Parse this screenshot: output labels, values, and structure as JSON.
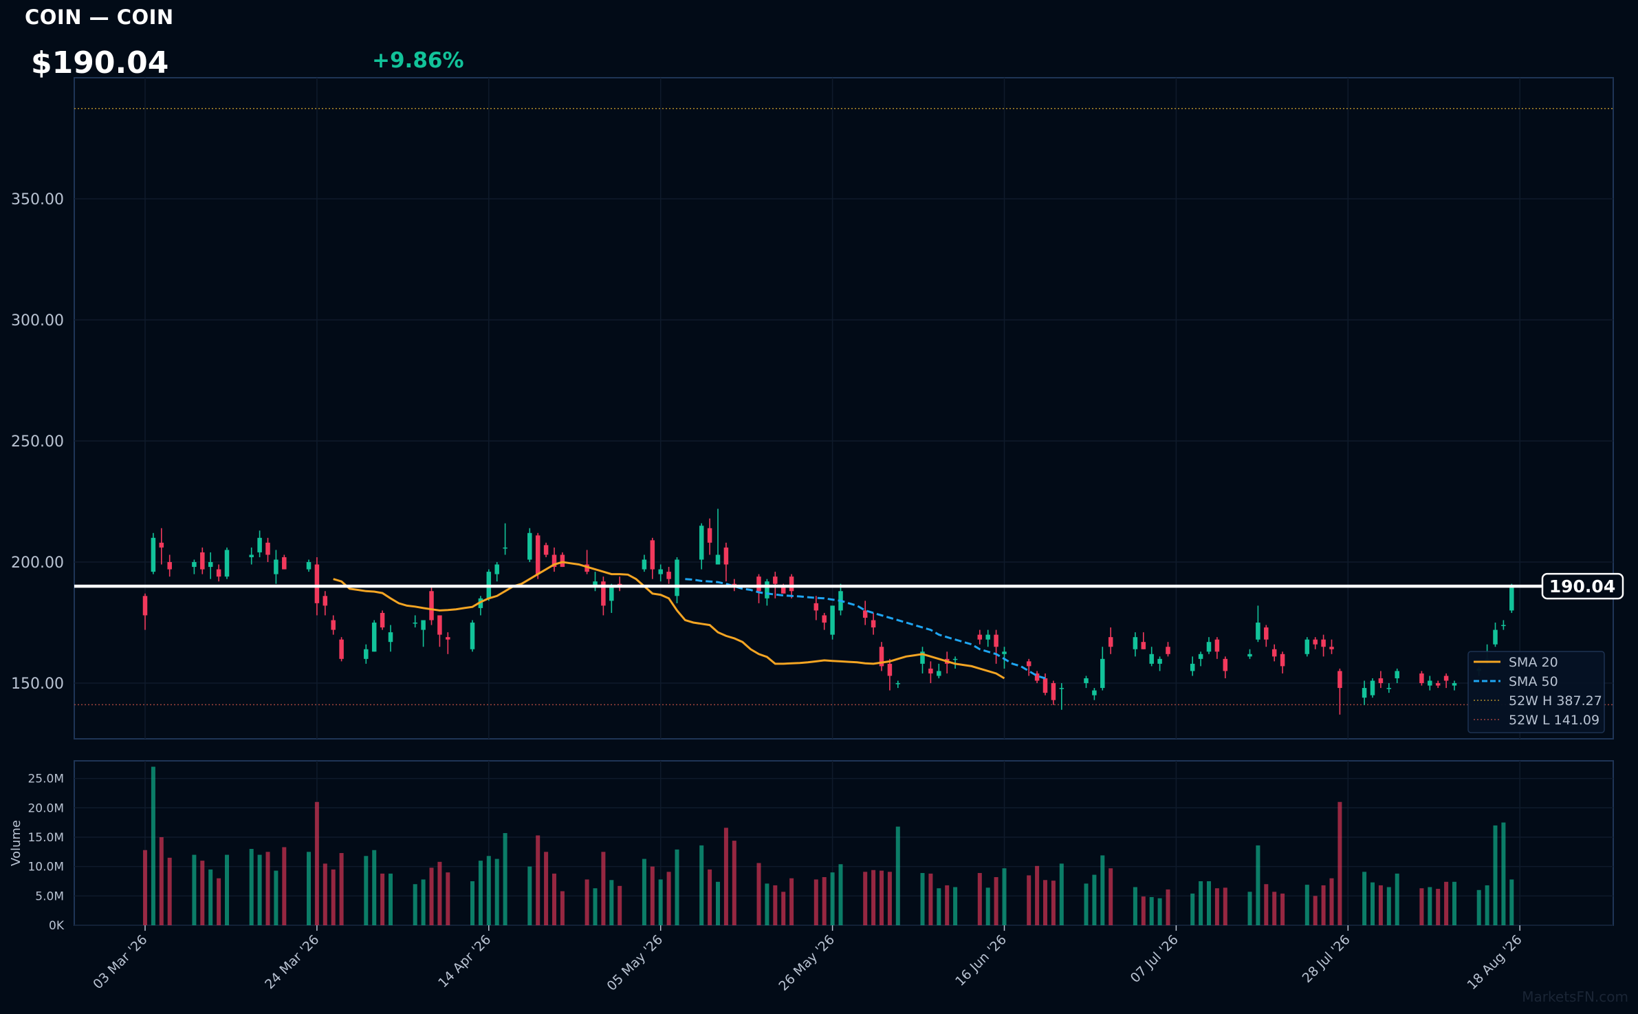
{
  "header": {
    "title": "COIN — COIN",
    "price": "$190.04",
    "change": "+9.86%"
  },
  "colors": {
    "background": "#020b17",
    "panel_border": "#1f3556",
    "grid": "#0f1b2b",
    "up": "#12c39a",
    "down": "#f2395c",
    "sma20": "#f4a523",
    "sma50": "#1ea5f2",
    "high_line": "#b08a2a",
    "low_line": "#a0433d",
    "axis_text": "#b9c3d2",
    "change_text": "#12c39a"
  },
  "chart_data": {
    "type": "candlestick",
    "x_ticks": [
      "03 Mar '26",
      "24 Mar '26",
      "14 Apr '26",
      "05 May '26",
      "26 May '26",
      "16 Jun '26",
      "07 Jul '26",
      "28 Jul '26",
      "18 Aug '26"
    ],
    "price_axis": {
      "ticks": [
        "150.00",
        "200.00",
        "250.00",
        "300.00",
        "350.00"
      ],
      "range": [
        127,
        400
      ]
    },
    "volume_axis": {
      "label": "Volume",
      "ticks": [
        "0K",
        "5.0M",
        "10.0M",
        "15.0M",
        "20.0M",
        "25.0M"
      ],
      "range": [
        0,
        28
      ]
    },
    "last_price_label": "190.04",
    "last_price": 190.04,
    "levels": {
      "high_52w": 387.27,
      "low_52w": 141.09
    },
    "legend": {
      "placement": "bottom-right",
      "items": [
        "SMA 20",
        "SMA 50",
        "52W H 387.27",
        "52W L 141.09"
      ]
    },
    "candles": [
      [
        0,
        186,
        187,
        172,
        178,
        12.8
      ],
      [
        1,
        196,
        212,
        195,
        210,
        27
      ],
      [
        2,
        208,
        214,
        199,
        206,
        15
      ],
      [
        3,
        200,
        203,
        194,
        197,
        11.5
      ],
      [
        6,
        198,
        201,
        195,
        200,
        12
      ],
      [
        7,
        204,
        206,
        195,
        197,
        11
      ],
      [
        8,
        198,
        204,
        193,
        200,
        9.5
      ],
      [
        9,
        197,
        199,
        192,
        194,
        8
      ],
      [
        10,
        194,
        206,
        193,
        205,
        12
      ],
      [
        13,
        202,
        206,
        199,
        203,
        13
      ],
      [
        14,
        204,
        213,
        202,
        210,
        12
      ],
      [
        15,
        208,
        210,
        200,
        203,
        12.5
      ],
      [
        16,
        195,
        205,
        191,
        201,
        9.3
      ],
      [
        17,
        202,
        203,
        197,
        197,
        13.3
      ],
      [
        20,
        197,
        201,
        196,
        200,
        12.5
      ],
      [
        21,
        199,
        202,
        178,
        183,
        21
      ],
      [
        22,
        186,
        188,
        178,
        182,
        10.5
      ],
      [
        23,
        176,
        178,
        170,
        172,
        9.5
      ],
      [
        24,
        168,
        169,
        159,
        160,
        12.3
      ],
      [
        27,
        160,
        166,
        158,
        164,
        11.8
      ],
      [
        28,
        163,
        176,
        163,
        175,
        12.8
      ],
      [
        29,
        179,
        180,
        172,
        173,
        8.8
      ],
      [
        30,
        167,
        174,
        163,
        171,
        8.8
      ],
      [
        33,
        175,
        178,
        173,
        175,
        7
      ],
      [
        34,
        172,
        176,
        165,
        176,
        7.8
      ],
      [
        35,
        188,
        190,
        174,
        176,
        9.8
      ],
      [
        36,
        178,
        178,
        165,
        170,
        10.8
      ],
      [
        37,
        169,
        171,
        162,
        168,
        9
      ],
      [
        40,
        164,
        176,
        163,
        175,
        7.5
      ],
      [
        41,
        181,
        186,
        178,
        185,
        11
      ],
      [
        42,
        185,
        197,
        184,
        196,
        11.8
      ],
      [
        43,
        195,
        200,
        192,
        199,
        11.3
      ],
      [
        44,
        206,
        216,
        203,
        206,
        15.7
      ],
      [
        47,
        201,
        214,
        200,
        212,
        10
      ],
      [
        48,
        211,
        212,
        193,
        195,
        15.3
      ],
      [
        49,
        207,
        208,
        202,
        203,
        12.5
      ],
      [
        50,
        203,
        206,
        196,
        198,
        8.8
      ],
      [
        51,
        203,
        204,
        198,
        198,
        5.8
      ],
      [
        54,
        199,
        205,
        195,
        196,
        7.8
      ],
      [
        55,
        190,
        196,
        188,
        192,
        6.3
      ],
      [
        56,
        192,
        194,
        178,
        182,
        12.5
      ],
      [
        57,
        184,
        191,
        179,
        190,
        7.7
      ],
      [
        58,
        191,
        194,
        188,
        190,
        6.7
      ],
      [
        61,
        197,
        203,
        196,
        201,
        11.3
      ],
      [
        62,
        209,
        210,
        193,
        197,
        10
      ],
      [
        63,
        195,
        199,
        192,
        197,
        7.8
      ],
      [
        64,
        196,
        198,
        191,
        193,
        9.1
      ],
      [
        65,
        186,
        202,
        183,
        201,
        12.9
      ],
      [
        68,
        201,
        216,
        197,
        215,
        13.6
      ],
      [
        69,
        214,
        218,
        203,
        208,
        9.5
      ],
      [
        70,
        199,
        222,
        199,
        203,
        7.4
      ],
      [
        71,
        206,
        208,
        192,
        199,
        16.6
      ],
      [
        72,
        191,
        193,
        188,
        190,
        14.4
      ],
      [
        75,
        194,
        195,
        183,
        188,
        10.6
      ],
      [
        76,
        185,
        193,
        182,
        192,
        7.1
      ],
      [
        77,
        194,
        196,
        185,
        191,
        6.8
      ],
      [
        78,
        190,
        191,
        187,
        187,
        5.7
      ],
      [
        79,
        194,
        195,
        185,
        188,
        8
      ],
      [
        82,
        183,
        186,
        176,
        180,
        7.8
      ],
      [
        83,
        178,
        179,
        172,
        175,
        8.2
      ],
      [
        84,
        170,
        182,
        168,
        182,
        9
      ],
      [
        85,
        180,
        191,
        178,
        188,
        10.4
      ],
      [
        88,
        180,
        184,
        174,
        177,
        9.1
      ],
      [
        89,
        176,
        179,
        170,
        173,
        9.4
      ],
      [
        90,
        165,
        167,
        155,
        157,
        9.3
      ],
      [
        91,
        158,
        160,
        147,
        153,
        9.1
      ],
      [
        92,
        150,
        151,
        148,
        150,
        16.8
      ],
      [
        95,
        158,
        165,
        154,
        163,
        8.9
      ],
      [
        96,
        156,
        159,
        150,
        154,
        8.8
      ],
      [
        97,
        153,
        158,
        152,
        155,
        6.3
      ],
      [
        98,
        160,
        163,
        154,
        158,
        6.8
      ],
      [
        99,
        160,
        161,
        156,
        160,
        6.5
      ],
      [
        102,
        170,
        172,
        166,
        168,
        8.9
      ],
      [
        103,
        168,
        172,
        165,
        170,
        6.4
      ],
      [
        104,
        170,
        172,
        158,
        165,
        8.2
      ],
      [
        105,
        162,
        165,
        156,
        163,
        9.7
      ],
      [
        108,
        159,
        160,
        153,
        157,
        8.5
      ],
      [
        109,
        154,
        155,
        150,
        151,
        10.1
      ],
      [
        110,
        152,
        154,
        145,
        146,
        7.7
      ],
      [
        111,
        150,
        151,
        141,
        143,
        7.6
      ],
      [
        112,
        148,
        150,
        139,
        148,
        10.5
      ],
      [
        115,
        150,
        153,
        148,
        152,
        7.1
      ],
      [
        116,
        145,
        148,
        143,
        147,
        8.6
      ],
      [
        117,
        148,
        165,
        147,
        160,
        11.9
      ],
      [
        118,
        169,
        173,
        162,
        165,
        9.7
      ],
      [
        121,
        164,
        171,
        161,
        169,
        6.5
      ],
      [
        122,
        167,
        171,
        164,
        164,
        4.9
      ],
      [
        123,
        158,
        165,
        157,
        162,
        4.8
      ],
      [
        124,
        158,
        161,
        155,
        160,
        4.6
      ],
      [
        125,
        165,
        167,
        161,
        162,
        6.1
      ],
      [
        128,
        155,
        161,
        153,
        158,
        5.4
      ],
      [
        129,
        160,
        163,
        157,
        162,
        7.5
      ],
      [
        130,
        163,
        169,
        162,
        167,
        7.5
      ],
      [
        131,
        168,
        169,
        160,
        163,
        6.3
      ],
      [
        132,
        160,
        161,
        152,
        155,
        6.4
      ],
      [
        135,
        161,
        164,
        160,
        162,
        5.7
      ],
      [
        136,
        168,
        182,
        167,
        175,
        13.6
      ],
      [
        137,
        173,
        174,
        165,
        168,
        7
      ],
      [
        138,
        164,
        166,
        159,
        161,
        5.7
      ],
      [
        139,
        162,
        163,
        154,
        157,
        5.4
      ],
      [
        142,
        162,
        169,
        161,
        168,
        6.9
      ],
      [
        143,
        168,
        169,
        164,
        166,
        5
      ],
      [
        144,
        168,
        170,
        161,
        165,
        6.8
      ],
      [
        145,
        165,
        168,
        162,
        164,
        8
      ],
      [
        146,
        155,
        156,
        137,
        148,
        21
      ],
      [
        149,
        144,
        151,
        141,
        148,
        9.1
      ],
      [
        150,
        145,
        152,
        144,
        151,
        7.3
      ],
      [
        151,
        152,
        155,
        148,
        150,
        6.8
      ],
      [
        152,
        148,
        150,
        146,
        148,
        6.5
      ],
      [
        153,
        152,
        156,
        150,
        155,
        8.8
      ],
      [
        156,
        154,
        155,
        149,
        150,
        6.3
      ],
      [
        157,
        149,
        153,
        147,
        151,
        6.5
      ],
      [
        158,
        150,
        151,
        148,
        149,
        6.2
      ],
      [
        159,
        153,
        154,
        148,
        151,
        7.4
      ],
      [
        160,
        149,
        151,
        147,
        150,
        7.4
      ],
      [
        163,
        155,
        157,
        153,
        156,
        6
      ],
      [
        164,
        160,
        166,
        158,
        160,
        6.8
      ],
      [
        165,
        166,
        175,
        165,
        172,
        17
      ],
      [
        166,
        174,
        176,
        172,
        174,
        17.5
      ],
      [
        167,
        180,
        191,
        179,
        190,
        7.8
      ]
    ],
    "sma20": [
      [
        23,
        193
      ],
      [
        24,
        192
      ],
      [
        25,
        189
      ],
      [
        26,
        188.5
      ],
      [
        27,
        188
      ],
      [
        28,
        187.8
      ],
      [
        29,
        187.2
      ],
      [
        30,
        185
      ],
      [
        31,
        183
      ],
      [
        32,
        182
      ],
      [
        33,
        181.6
      ],
      [
        34,
        181
      ],
      [
        35,
        180.5
      ],
      [
        36,
        180
      ],
      [
        37,
        180.2
      ],
      [
        38,
        180.5
      ],
      [
        39,
        181
      ],
      [
        40,
        181.5
      ],
      [
        41,
        183.5
      ],
      [
        42,
        185
      ],
      [
        43,
        186
      ],
      [
        44,
        188
      ],
      [
        45,
        190
      ],
      [
        46,
        191
      ],
      [
        47,
        193
      ],
      [
        48,
        195
      ],
      [
        49,
        197
      ],
      [
        50,
        199
      ],
      [
        51,
        200
      ],
      [
        52,
        199.5
      ],
      [
        53,
        199
      ],
      [
        54,
        198
      ],
      [
        55,
        197
      ],
      [
        56,
        196
      ],
      [
        57,
        195
      ],
      [
        58,
        195
      ],
      [
        59,
        194.8
      ],
      [
        60,
        193
      ],
      [
        61,
        190
      ],
      [
        62,
        187
      ],
      [
        63,
        186.5
      ],
      [
        64,
        185
      ],
      [
        65,
        180
      ],
      [
        66,
        176
      ],
      [
        67,
        175
      ],
      [
        68,
        174.5
      ],
      [
        69,
        174
      ],
      [
        70,
        171
      ],
      [
        71,
        169.5
      ],
      [
        72,
        168.5
      ],
      [
        73,
        167
      ],
      [
        74,
        164
      ],
      [
        75,
        162
      ],
      [
        76,
        160.8
      ],
      [
        77,
        158
      ],
      [
        78,
        158
      ],
      [
        79,
        158.2
      ],
      [
        80,
        158.3
      ],
      [
        81,
        158.6
      ],
      [
        82,
        159
      ],
      [
        83,
        159.4
      ],
      [
        84,
        159.2
      ],
      [
        85,
        159
      ],
      [
        86,
        158.8
      ],
      [
        87,
        158.6
      ],
      [
        88,
        158.2
      ],
      [
        89,
        158
      ],
      [
        90,
        158.5
      ],
      [
        91,
        159
      ],
      [
        92,
        160
      ],
      [
        93,
        161
      ],
      [
        94,
        161.5
      ],
      [
        95,
        162
      ],
      [
        96,
        161
      ],
      [
        97,
        160
      ],
      [
        98,
        159
      ],
      [
        99,
        158
      ],
      [
        100,
        157.5
      ],
      [
        101,
        157
      ],
      [
        102,
        156
      ],
      [
        103,
        155
      ],
      [
        104,
        154
      ],
      [
        105,
        152
      ]
    ],
    "sma50": [
      [
        66,
        193
      ],
      [
        67,
        192.7
      ],
      [
        68,
        192.2
      ],
      [
        69,
        192
      ],
      [
        70,
        191.7
      ],
      [
        71,
        191
      ],
      [
        72,
        190
      ],
      [
        73,
        189
      ],
      [
        74,
        188.5
      ],
      [
        75,
        187.5
      ],
      [
        76,
        187
      ],
      [
        77,
        186.6
      ],
      [
        78,
        186.2
      ],
      [
        79,
        186
      ],
      [
        80,
        185.8
      ],
      [
        81,
        185.5
      ],
      [
        82,
        185.2
      ],
      [
        83,
        185
      ],
      [
        84,
        184.5
      ],
      [
        85,
        184
      ],
      [
        86,
        183
      ],
      [
        87,
        182
      ],
      [
        88,
        180
      ],
      [
        89,
        179
      ],
      [
        90,
        178
      ],
      [
        91,
        177
      ],
      [
        92,
        176
      ],
      [
        93,
        175
      ],
      [
        94,
        174
      ],
      [
        95,
        173
      ],
      [
        96,
        172
      ],
      [
        97,
        170
      ],
      [
        98,
        169
      ],
      [
        99,
        168
      ],
      [
        100,
        167
      ],
      [
        101,
        166
      ],
      [
        102,
        164
      ],
      [
        103,
        163
      ],
      [
        104,
        162
      ],
      [
        105,
        160
      ],
      [
        106,
        158
      ],
      [
        107,
        157
      ],
      [
        108,
        155
      ],
      [
        109,
        153
      ],
      [
        110,
        152
      ]
    ]
  },
  "watermark": "MarketsFN.com"
}
